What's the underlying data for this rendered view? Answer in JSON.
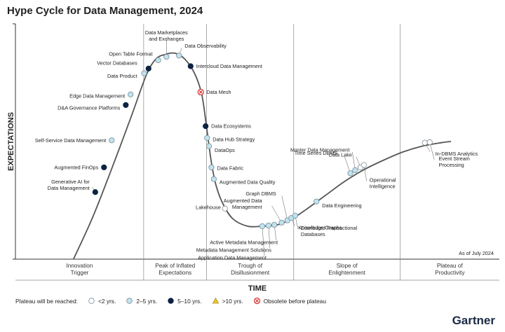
{
  "title": "Hype Cycle for Data Management, 2024",
  "as_of": "As of July 2024",
  "brand": "Gartner",
  "colors": {
    "under2": "#ffffff",
    "two_to_five": "#bfe3f0",
    "five_to_ten": "#0d2244",
    "over10": "#f3c623",
    "obsolete": "#d73333",
    "curve": "#555555"
  },
  "legend": {
    "title": "Plateau will be reached:",
    "items": [
      {
        "key": "under2",
        "label": "<2 yrs."
      },
      {
        "key": "two_to_five",
        "label": "2–5 yrs."
      },
      {
        "key": "five_to_ten",
        "label": "5–10 yrs."
      },
      {
        "key": "over10",
        "label": ">10 yrs."
      },
      {
        "key": "obsolete",
        "label": "Obsolete before plateau"
      }
    ]
  },
  "chart_data": {
    "type": "scatter",
    "title": "Hype Cycle for Data Management, 2024",
    "xlabel": "TIME",
    "ylabel": "EXPECTATIONS",
    "xlim": [
      0,
      100
    ],
    "ylim": [
      0,
      100
    ],
    "phases": [
      {
        "label": [
          "Innovation",
          "Trigger"
        ],
        "start": 0,
        "end": 26.5
      },
      {
        "label": [
          "Peak of Inflated",
          "Expectations"
        ],
        "start": 26.5,
        "end": 39.5
      },
      {
        "label": [
          "Trough of",
          "Disillusionment"
        ],
        "start": 39.5,
        "end": 57.5
      },
      {
        "label": [
          "Slope of",
          "Enlightenment"
        ],
        "start": 57.5,
        "end": 79.5
      },
      {
        "label": [
          "Plateau of",
          "Productivity"
        ],
        "start": 79.5,
        "end": 100
      }
    ],
    "curve": [
      [
        12,
        0
      ],
      [
        16,
        18
      ],
      [
        20,
        39
      ],
      [
        24,
        61
      ],
      [
        27,
        78
      ],
      [
        29,
        85
      ],
      [
        31,
        87
      ],
      [
        33,
        87.5
      ],
      [
        35,
        85
      ],
      [
        37,
        79
      ],
      [
        38.5,
        70
      ],
      [
        39.5,
        56
      ],
      [
        40.5,
        41
      ],
      [
        41.5,
        31
      ],
      [
        43,
        23
      ],
      [
        45,
        17
      ],
      [
        48,
        14
      ],
      [
        51,
        14
      ],
      [
        54,
        14.5
      ],
      [
        57,
        17
      ],
      [
        60,
        21
      ],
      [
        64,
        27
      ],
      [
        68,
        33
      ],
      [
        72,
        38
      ],
      [
        76,
        42
      ],
      [
        80,
        45.5
      ],
      [
        84,
        48
      ],
      [
        88,
        49.5
      ],
      [
        90,
        50
      ]
    ],
    "points": [
      {
        "name": "Generative AI for Data Management",
        "lines": [
          "Generative AI for",
          "Data Management"
        ],
        "x": 16.5,
        "y": 28.5,
        "cat": "five_to_ten",
        "side": "left"
      },
      {
        "name": "Augmented FinOps",
        "lines": [
          "Augmented FinOps"
        ],
        "x": 18.3,
        "y": 39.0,
        "cat": "five_to_ten",
        "side": "left"
      },
      {
        "name": "Self-Service Data Management",
        "lines": [
          "Self-Service Data Management"
        ],
        "x": 19.9,
        "y": 50.5,
        "cat": "two_to_five",
        "side": "left"
      },
      {
        "name": "D&A Governance Platforms",
        "lines": [
          "D&A Governance Platforms"
        ],
        "x": 22.8,
        "y": 65.5,
        "cat": "five_to_ten",
        "side": "left"
      },
      {
        "name": "Edge Data Management",
        "lines": [
          "Edge Data Management"
        ],
        "x": 23.8,
        "y": 70.0,
        "cat": "two_to_five",
        "side": "left"
      },
      {
        "name": "Data Product",
        "lines": [
          "Data Product"
        ],
        "x": 26.6,
        "y": 79.0,
        "cat": "two_to_five",
        "side": "left"
      },
      {
        "name": "Vector Databases",
        "lines": [
          "Vector Databases"
        ],
        "x": 27.5,
        "y": 81.0,
        "cat": "five_to_ten",
        "side": "left"
      },
      {
        "name": "Open Table Format",
        "lines": [
          "Open Table Format"
        ],
        "x": 29.5,
        "y": 84.5,
        "cat": "two_to_five",
        "side": "left"
      },
      {
        "name": "Data Marketplaces and Exchanges",
        "lines": [
          "Data Marketplaces",
          "and Exchanges"
        ],
        "x": 31.2,
        "y": 86.0,
        "cat": "two_to_five",
        "side": "above"
      },
      {
        "name": "Data Observability",
        "lines": [
          "Data Observability"
        ],
        "x": 33.8,
        "y": 86.5,
        "cat": "two_to_five",
        "side": "right"
      },
      {
        "name": "Intercloud Data Management",
        "lines": [
          "Intercloud Data Management"
        ],
        "x": 36.2,
        "y": 82.0,
        "cat": "five_to_ten",
        "side": "right"
      },
      {
        "name": "Data Mesh",
        "lines": [
          "Data Mesh"
        ],
        "x": 38.3,
        "y": 71.0,
        "cat": "obsolete",
        "side": "right"
      },
      {
        "name": "Data Ecosystems",
        "lines": [
          "Data Ecosystems"
        ],
        "x": 39.3,
        "y": 56.5,
        "cat": "five_to_ten",
        "side": "right"
      },
      {
        "name": "Data Hub Strategy",
        "lines": [
          "Data Hub Strategy"
        ],
        "x": 39.6,
        "y": 51.5,
        "cat": "two_to_five",
        "side": "right"
      },
      {
        "name": "DataOps",
        "lines": [
          "DataOps"
        ],
        "x": 40.0,
        "y": 48.0,
        "cat": "two_to_five",
        "side": "right"
      },
      {
        "name": "Data Fabric",
        "lines": [
          "Data Fabric"
        ],
        "x": 40.5,
        "y": 39.0,
        "cat": "two_to_five",
        "side": "right"
      },
      {
        "name": "Augmented Data Quality",
        "lines": [
          "Augmented Data Quality"
        ],
        "x": 41.0,
        "y": 34.0,
        "cat": "two_to_five",
        "side": "right"
      },
      {
        "name": "Lakehouse",
        "lines": [
          "Lakehouse"
        ],
        "x": 43.3,
        "y": 21.5,
        "cat": "under2",
        "side": "left"
      },
      {
        "name": "Application Data Management",
        "lines": [
          "Application Data Management"
        ],
        "x": 51.0,
        "y": 14.0,
        "cat": "two_to_five",
        "side": "below"
      },
      {
        "name": "Metadata Management Solutions",
        "lines": [
          "Metadata Management Solutions"
        ],
        "x": 52.3,
        "y": 14.3,
        "cat": "two_to_five",
        "side": "below"
      },
      {
        "name": "Active Metadata Management",
        "lines": [
          "Active Metadata Management"
        ],
        "x": 53.5,
        "y": 14.6,
        "cat": "two_to_five",
        "side": "below"
      },
      {
        "name": "Augmented Data Management",
        "lines": [
          "Augmented Data",
          "Management"
        ],
        "x": 55.0,
        "y": 15.5,
        "cat": "two_to_five",
        "side": "left"
      },
      {
        "name": "Graph DBMS",
        "lines": [
          "Graph DBMS"
        ],
        "x": 56.2,
        "y": 16.5,
        "cat": "two_to_five",
        "side": "left"
      },
      {
        "name": "Knowledge Graphs",
        "lines": [
          "Knowledge Graphs"
        ],
        "x": 57.0,
        "y": 17.5,
        "cat": "two_to_five",
        "side": "right"
      },
      {
        "name": "Distributed Transactional Databases",
        "lines": [
          "Distributed Transactional",
          "Databases"
        ],
        "x": 57.8,
        "y": 18.5,
        "cat": "two_to_five",
        "side": "right"
      },
      {
        "name": "Data Engineering",
        "lines": [
          "Data Engineering"
        ],
        "x": 62.2,
        "y": 24.5,
        "cat": "two_to_five",
        "side": "right"
      },
      {
        "name": "Time Series DBMS",
        "lines": [
          "Time Series DBMS"
        ],
        "x": 69.2,
        "y": 36.5,
        "cat": "two_to_five",
        "side": "left"
      },
      {
        "name": "Master Data Management",
        "lines": [
          "Master Data Management"
        ],
        "x": 70.2,
        "y": 37.8,
        "cat": "two_to_five",
        "side": "left"
      },
      {
        "name": "Data Lake",
        "lines": [
          "Data Lake"
        ],
        "x": 71.3,
        "y": 39.0,
        "cat": "under2",
        "side": "left"
      },
      {
        "name": "Operational Intelligence",
        "lines": [
          "Operational",
          "Intelligence"
        ],
        "x": 72.0,
        "y": 40.0,
        "cat": "under2",
        "side": "right"
      },
      {
        "name": "In-DBMS Analytics",
        "lines": [
          "In-DBMS Analytics"
        ],
        "x": 84.6,
        "y": 49.5,
        "cat": "under2",
        "side": "right"
      },
      {
        "name": "Event Stream Processing",
        "lines": [
          "Event Stream",
          "Processing"
        ],
        "x": 85.6,
        "y": 49.7,
        "cat": "under2",
        "side": "right"
      }
    ]
  }
}
